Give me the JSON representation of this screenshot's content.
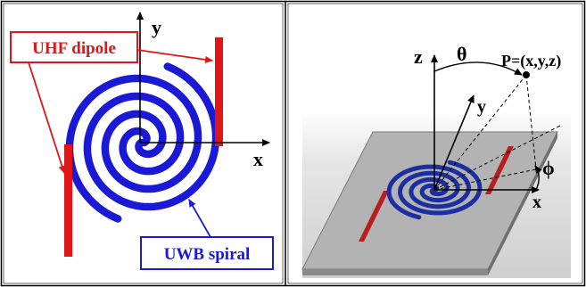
{
  "left_panel": {
    "axis_x": "x",
    "axis_y": "y",
    "callout_dipole": "UHF dipole",
    "callout_spiral": "UWB spiral",
    "colors": {
      "spiral": "#1a1ad6",
      "dipole": "#e01515",
      "callout_dipole_border": "#e01515",
      "callout_spiral_border": "#1a1ad6"
    }
  },
  "right_panel": {
    "axis_z": "z",
    "axis_y": "y",
    "axis_x": "x",
    "theta": "θ",
    "phi": "ϕ",
    "point_label": "P=(x,y,z)",
    "colors": {
      "substrate_top": "#a9a9a9",
      "substrate_edge": "#6f6f6f",
      "spiral": "#1b2fa0",
      "dipole": "#b81e1e",
      "background": "#d9d9d9"
    }
  }
}
